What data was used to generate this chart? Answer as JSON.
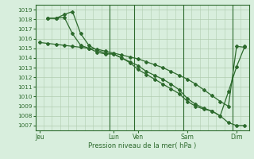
{
  "background_color": "#d8eedd",
  "plot_bg_color": "#d8eedd",
  "grid_color": "#b0ccb0",
  "line_color": "#2d6a2d",
  "marker_color": "#2d6a2d",
  "xlabel_text": "Pression niveau de la mer( hPa )",
  "yticks": [
    1007,
    1008,
    1009,
    1010,
    1011,
    1012,
    1013,
    1014,
    1015,
    1016,
    1017,
    1018,
    1019
  ],
  "ylim": [
    1006.5,
    1019.5
  ],
  "x_day_labels": [
    "Jeu",
    "Lun",
    "Ven",
    "Sam",
    "Dim"
  ],
  "x_day_positions": [
    0,
    9,
    12,
    18,
    24
  ],
  "xlim": [
    -0.5,
    25.5
  ],
  "vline_positions": [
    9,
    12,
    18,
    24
  ],
  "series1_x": [
    0,
    1,
    2,
    3,
    4,
    5,
    6,
    7,
    8,
    9,
    10,
    11,
    12,
    13,
    14,
    15,
    16,
    17,
    18,
    19,
    20,
    21,
    22,
    23,
    24,
    25
  ],
  "series1_y": [
    1015.6,
    1015.5,
    1015.4,
    1015.3,
    1015.2,
    1015.1,
    1015.0,
    1014.9,
    1014.7,
    1014.5,
    1014.3,
    1014.1,
    1013.9,
    1013.6,
    1013.3,
    1013.0,
    1012.6,
    1012.2,
    1011.8,
    1011.3,
    1010.7,
    1010.1,
    1009.5,
    1009.0,
    1015.2,
    1015.1
  ],
  "series2_x": [
    1,
    2,
    3,
    4,
    5,
    6,
    7,
    8,
    9,
    10,
    11,
    12,
    13,
    14,
    15,
    16,
    17,
    18,
    19,
    20,
    21,
    22,
    23,
    24,
    25
  ],
  "series2_y": [
    1018.1,
    1018.1,
    1018.5,
    1018.8,
    1016.5,
    1015.3,
    1014.8,
    1014.5,
    1014.4,
    1014.0,
    1013.6,
    1013.2,
    1012.6,
    1012.2,
    1011.8,
    1011.3,
    1010.7,
    1009.8,
    1009.2,
    1008.8,
    1008.5,
    1008.0,
    1007.3,
    1007.0,
    1007.0
  ],
  "series3_x": [
    1,
    2,
    3,
    4,
    5,
    6,
    7,
    8,
    9,
    10,
    11,
    12,
    13,
    14,
    15,
    16,
    17,
    18,
    19,
    20,
    21,
    22,
    23,
    24,
    25
  ],
  "series3_y": [
    1018.1,
    1018.1,
    1018.2,
    1016.5,
    1015.3,
    1015.0,
    1014.6,
    1014.4,
    1014.4,
    1014.0,
    1013.5,
    1012.8,
    1012.3,
    1011.8,
    1011.3,
    1010.8,
    1010.3,
    1009.5,
    1009.0,
    1008.7,
    1008.5,
    1008.0,
    1010.5,
    1013.1,
    1015.2
  ]
}
